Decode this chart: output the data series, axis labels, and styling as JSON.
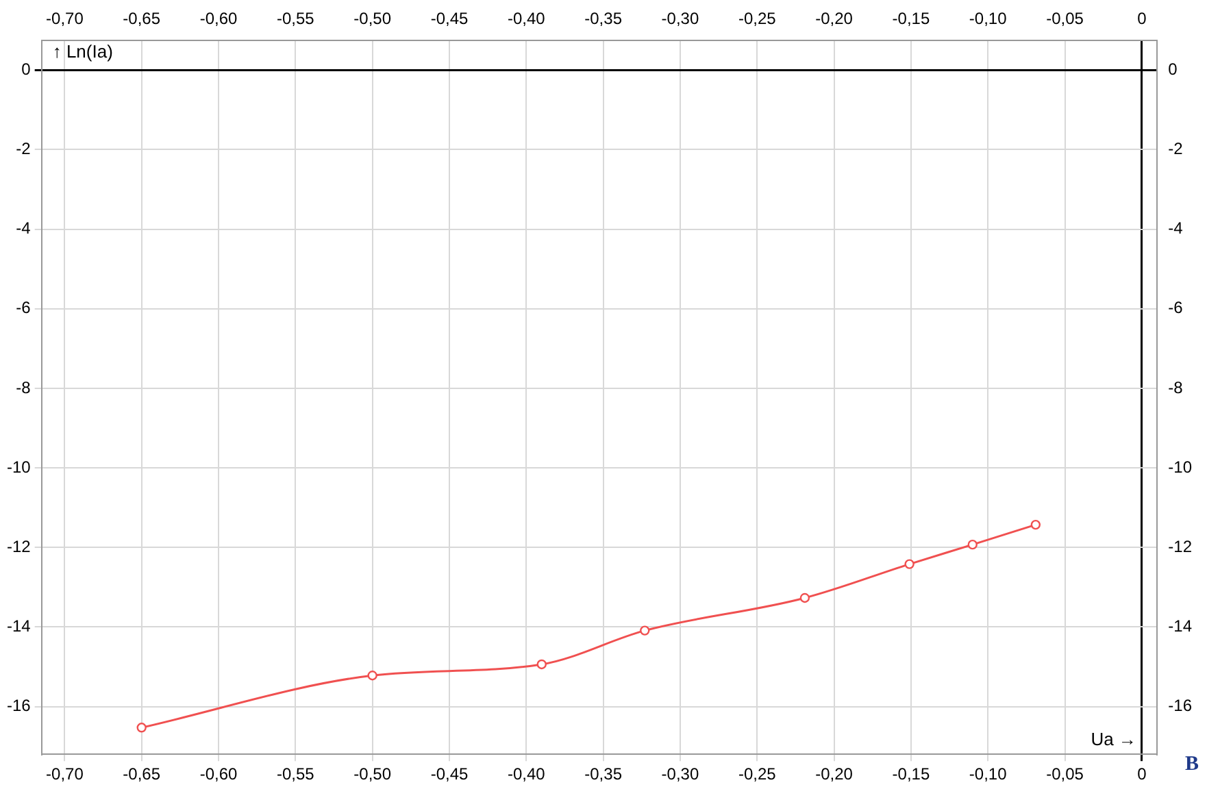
{
  "chart_data": {
    "type": "line",
    "xlabel": "Ua →",
    "ylabel": "↑ Ln(Ia)",
    "annotations": [
      "B"
    ],
    "x": [
      -0.65,
      -0.5,
      -0.39,
      -0.323,
      -0.219,
      -0.151,
      -0.11,
      -0.069
    ],
    "series": [
      {
        "color": "#f05050",
        "values": [
          -16.53,
          -15.22,
          -14.94,
          -14.09,
          -13.27,
          -12.42,
          -11.93,
          -11.43
        ]
      }
    ],
    "xlim": [
      -0.715,
      0.01
    ],
    "ylim": [
      -17.2,
      0.75
    ],
    "x2lim": [
      -0.715,
      0.01
    ],
    "y2lim": [
      -17.2,
      0.75
    ],
    "xticks": [
      {
        "value": -0.7,
        "label": "-0,70"
      },
      {
        "value": -0.65,
        "label": "-0,65"
      },
      {
        "value": -0.6,
        "label": "-0,60"
      },
      {
        "value": -0.55,
        "label": "-0,55"
      },
      {
        "value": -0.5,
        "label": "-0,50"
      },
      {
        "value": -0.45,
        "label": "-0,45"
      },
      {
        "value": -0.4,
        "label": "-0,40"
      },
      {
        "value": -0.35,
        "label": "-0,35"
      },
      {
        "value": -0.3,
        "label": "-0,30"
      },
      {
        "value": -0.25,
        "label": "-0,25"
      },
      {
        "value": -0.2,
        "label": "-0,20"
      },
      {
        "value": -0.15,
        "label": "-0,15"
      },
      {
        "value": -0.1,
        "label": "-0,10"
      },
      {
        "value": -0.05,
        "label": "-0,05"
      },
      0
    ],
    "x2ticks": [
      {
        "value": -0.7,
        "label": "-0,70"
      },
      {
        "value": -0.65,
        "label": "-0,65"
      },
      {
        "value": -0.6,
        "label": "-0,60"
      },
      {
        "value": -0.55,
        "label": "-0,55"
      },
      {
        "value": -0.5,
        "label": "-0,50"
      },
      {
        "value": -0.45,
        "label": "-0,45"
      },
      {
        "value": -0.4,
        "label": "-0,40"
      },
      {
        "value": -0.35,
        "label": "-0,35"
      },
      {
        "value": -0.3,
        "label": "-0,30"
      },
      {
        "value": -0.25,
        "label": "-0,25"
      },
      {
        "value": -0.2,
        "label": "-0,20"
      },
      {
        "value": -0.15,
        "label": "-0,15"
      },
      {
        "value": -0.1,
        "label": "-0,10"
      },
      {
        "value": -0.05,
        "label": "-0,05"
      },
      0
    ],
    "yticks": [
      0,
      -2,
      -4,
      -6,
      -8,
      -10,
      -12,
      -14,
      -16
    ],
    "y2ticks": [
      0,
      -2,
      -4,
      -6,
      -8,
      -10,
      -12,
      -14,
      -16
    ],
    "grid": true,
    "legend": false,
    "marker": "circle",
    "line_style": "solid"
  }
}
